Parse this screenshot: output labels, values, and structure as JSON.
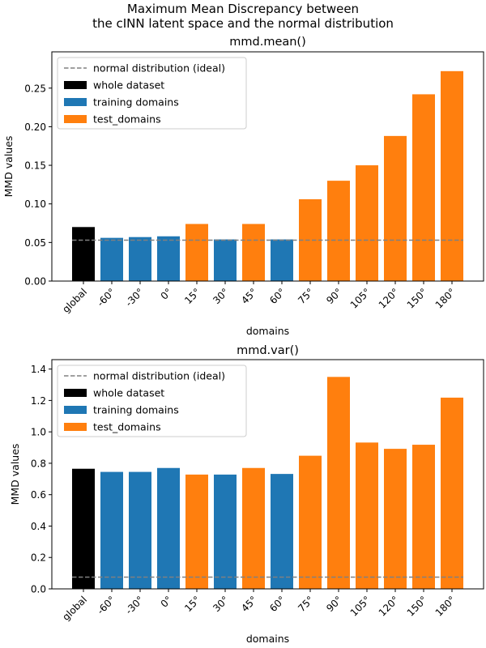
{
  "figure": {
    "suptitle_line1": "Maximum Mean Discrepancy between",
    "suptitle_line2": "the cINN latent space and the normal distribution"
  },
  "legend_entries": {
    "reference": "normal distribution (ideal)",
    "whole": "whole dataset",
    "training": "training domains",
    "test": "test_domains"
  },
  "colors": {
    "whole": "#000000",
    "training": "#1f77b4",
    "test": "#ff7f0e",
    "reference": "#808080"
  },
  "chart_data": [
    {
      "type": "bar",
      "title": "mmd.mean()",
      "xlabel": "domains",
      "ylabel": "MMD values",
      "categories": [
        "global",
        "-60°",
        "-30°",
        "0°",
        "15°",
        "30°",
        "45°",
        "60°",
        "75°",
        "90°",
        "105°",
        "120°",
        "150°",
        "180°"
      ],
      "groups": [
        "whole",
        "training",
        "training",
        "training",
        "test",
        "training",
        "test",
        "training",
        "test",
        "test",
        "test",
        "test",
        "test",
        "test"
      ],
      "values": [
        0.07,
        0.056,
        0.057,
        0.058,
        0.074,
        0.054,
        0.074,
        0.054,
        0.106,
        0.13,
        0.15,
        0.188,
        0.242,
        0.272
      ],
      "reference_line": 0.053,
      "ylim": [
        0,
        0.297
      ],
      "yticks": [
        0.0,
        0.05,
        0.1,
        0.15,
        0.2,
        0.25
      ],
      "ytick_labels": [
        "0.00",
        "0.05",
        "0.10",
        "0.15",
        "0.20",
        "0.25"
      ],
      "legend": "upper left"
    },
    {
      "type": "bar",
      "title": "mmd.var()",
      "xlabel": "domains",
      "ylabel": "MMD values",
      "categories": [
        "global",
        "-60°",
        "-30°",
        "0°",
        "15°",
        "30°",
        "45°",
        "60°",
        "75°",
        "90°",
        "105°",
        "120°",
        "150°",
        "180°"
      ],
      "groups": [
        "whole",
        "training",
        "training",
        "training",
        "test",
        "training",
        "test",
        "training",
        "test",
        "test",
        "test",
        "test",
        "test",
        "test"
      ],
      "values": [
        0.765,
        0.745,
        0.745,
        0.77,
        0.728,
        0.728,
        0.77,
        0.732,
        0.848,
        1.35,
        0.932,
        0.892,
        0.918,
        1.218
      ],
      "reference_line": 0.075,
      "ylim": [
        0,
        1.46
      ],
      "yticks": [
        0.0,
        0.2,
        0.4,
        0.6,
        0.8,
        1.0,
        1.2,
        1.4
      ],
      "ytick_labels": [
        "0.0",
        "0.2",
        "0.4",
        "0.6",
        "0.8",
        "1.0",
        "1.2",
        "1.4"
      ],
      "legend": "upper left"
    }
  ]
}
